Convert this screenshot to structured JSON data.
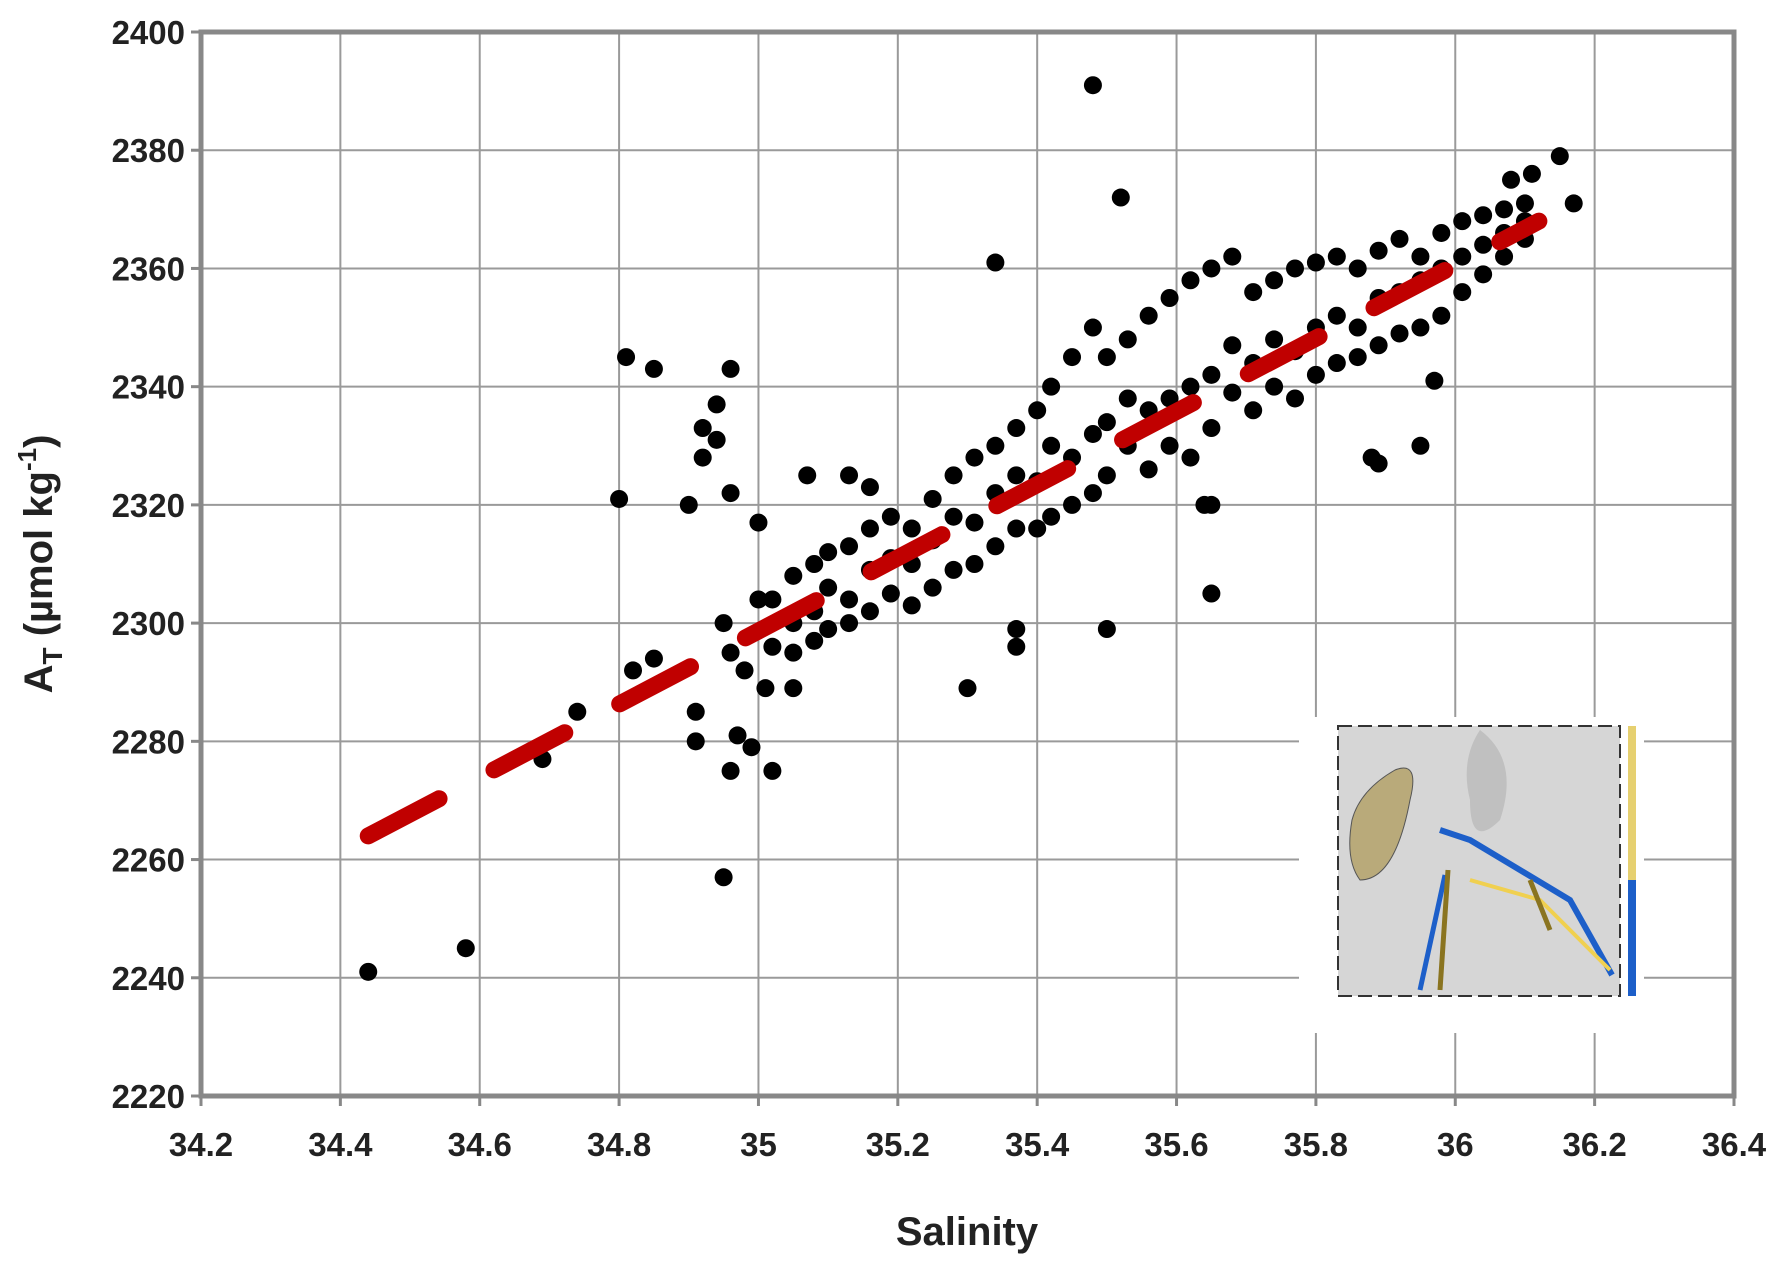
{
  "chart_data": {
    "type": "scatter",
    "xlabel": "Salinity",
    "ylabel": {
      "main": "A",
      "sub": "T",
      "unit": " (µmol kg",
      "sup": "-1",
      "close": ")"
    },
    "xlim": [
      34.2,
      36.4
    ],
    "xticks": [
      34.2,
      34.4,
      34.6,
      34.8,
      35,
      35.2,
      35.4,
      35.6,
      35.8,
      36,
      36.2,
      36.4
    ],
    "ylim": [
      2220,
      2400
    ],
    "yticks": [
      2220,
      2240,
      2260,
      2280,
      2300,
      2320,
      2340,
      2360,
      2380,
      2400
    ],
    "grid": true,
    "points": {
      "color": "#000000",
      "x": [
        34.44,
        34.58,
        34.69,
        34.74,
        34.8,
        34.81,
        34.82,
        34.85,
        34.85,
        34.9,
        34.91,
        34.91,
        34.92,
        34.92,
        34.94,
        34.94,
        34.95,
        34.95,
        34.96,
        34.96,
        34.96,
        34.96,
        34.97,
        34.98,
        34.99,
        35,
        35,
        35.01,
        35.02,
        35.05,
        35.07,
        35.13,
        35.16,
        35.3,
        35.34,
        35.37,
        35.37,
        35.48,
        35.5,
        35.52,
        35.65,
        35.65,
        35.64,
        35.88,
        35.89,
        35.95,
        35.97,
        36.15,
        36.17,
        36.08,
        36.11,
        35.02,
        35.02,
        35.05,
        35.05,
        35.05,
        35.08,
        35.08,
        35.08,
        35.1,
        35.1,
        35.1,
        35.13,
        35.13,
        35.13,
        35.16,
        35.16,
        35.16,
        35.19,
        35.19,
        35.19,
        35.22,
        35.22,
        35.22,
        35.25,
        35.25,
        35.25,
        35.28,
        35.28,
        35.28,
        35.31,
        35.31,
        35.31,
        35.34,
        35.34,
        35.34,
        35.37,
        35.37,
        35.37,
        35.4,
        35.4,
        35.4,
        35.42,
        35.42,
        35.42,
        35.45,
        35.45,
        35.45,
        35.48,
        35.48,
        35.48,
        35.5,
        35.5,
        35.5,
        35.53,
        35.53,
        35.53,
        35.56,
        35.56,
        35.56,
        35.59,
        35.59,
        35.59,
        35.62,
        35.62,
        35.62,
        35.65,
        35.65,
        35.65,
        35.68,
        35.68,
        35.68,
        35.71,
        35.71,
        35.71,
        35.74,
        35.74,
        35.74,
        35.77,
        35.77,
        35.77,
        35.8,
        35.8,
        35.8,
        35.83,
        35.83,
        35.83,
        35.86,
        35.86,
        35.86,
        35.89,
        35.89,
        35.89,
        35.92,
        35.92,
        35.92,
        35.95,
        35.95,
        35.95,
        35.98,
        35.98,
        35.98,
        36.01,
        36.01,
        36.01,
        36.04,
        36.04,
        36.04,
        36.07,
        36.07,
        36.07,
        36.1,
        36.1,
        36.1
      ],
      "y": [
        2241,
        2245,
        2277,
        2285,
        2321,
        2345,
        2292,
        2343,
        2294,
        2320,
        2285,
        2280,
        2333,
        2328,
        2337,
        2331,
        2300,
        2257,
        2343,
        2322,
        2295,
        2275,
        2281,
        2292,
        2279,
        2317,
        2304,
        2289,
        2275,
        2289,
        2325,
        2325,
        2323,
        2289,
        2361,
        2296,
        2299,
        2391,
        2299,
        2372,
        2305,
        2320,
        2320,
        2328,
        2327,
        2330,
        2341,
        2379,
        2371,
        2375,
        2376,
        2296,
        2304,
        2300,
        2308,
        2295,
        2302,
        2310,
        2297,
        2306,
        2299,
        2312,
        2304,
        2313,
        2300,
        2309,
        2302,
        2316,
        2311,
        2305,
        2318,
        2310,
        2303,
        2316,
        2314,
        2306,
        2321,
        2318,
        2309,
        2325,
        2317,
        2310,
        2328,
        2322,
        2313,
        2330,
        2325,
        2316,
        2333,
        2324,
        2316,
        2336,
        2330,
        2318,
        2340,
        2328,
        2320,
        2345,
        2332,
        2322,
        2350,
        2334,
        2325,
        2345,
        2330,
        2338,
        2348,
        2336,
        2326,
        2352,
        2338,
        2330,
        2355,
        2340,
        2328,
        2358,
        2342,
        2333,
        2360,
        2339,
        2347,
        2362,
        2344,
        2336,
        2356,
        2348,
        2340,
        2358,
        2346,
        2338,
        2360,
        2350,
        2342,
        2361,
        2352,
        2344,
        2362,
        2350,
        2345,
        2360,
        2355,
        2347,
        2363,
        2356,
        2349,
        2365,
        2358,
        2350,
        2362,
        2360,
        2352,
        2366,
        2362,
        2356,
        2368,
        2364,
        2359,
        2369,
        2366,
        2362,
        2370,
        2368,
        2365,
        2371
      ]
    },
    "fit": {
      "color": "#c00000",
      "x": [
        34.44,
        36.12
      ],
      "y": [
        2264,
        2368
      ]
    }
  }
}
